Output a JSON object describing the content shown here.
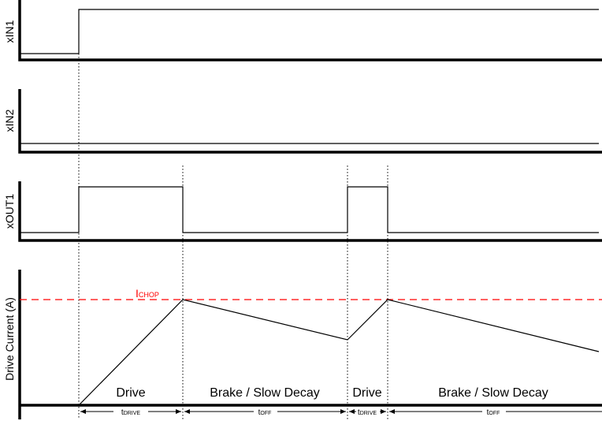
{
  "panels": [
    {
      "ylabel": "xIN1"
    },
    {
      "ylabel": "xIN2"
    },
    {
      "ylabel": "xOUT1"
    },
    {
      "ylabel": "Drive Current (A)"
    }
  ],
  "threshold": {
    "label_main": "I",
    "label_sub": "CHOP",
    "color": "#ff0000"
  },
  "phases": [
    "Drive",
    "Brake / Slow Decay",
    "Drive",
    "Brake / Slow Decay"
  ],
  "intervals": [
    {
      "main": "t",
      "sub": "DRIVE"
    },
    {
      "main": "t",
      "sub": "OFF"
    },
    {
      "main": "t",
      "sub": "DRIVE"
    },
    {
      "main": "t",
      "sub": "OFF"
    }
  ]
}
